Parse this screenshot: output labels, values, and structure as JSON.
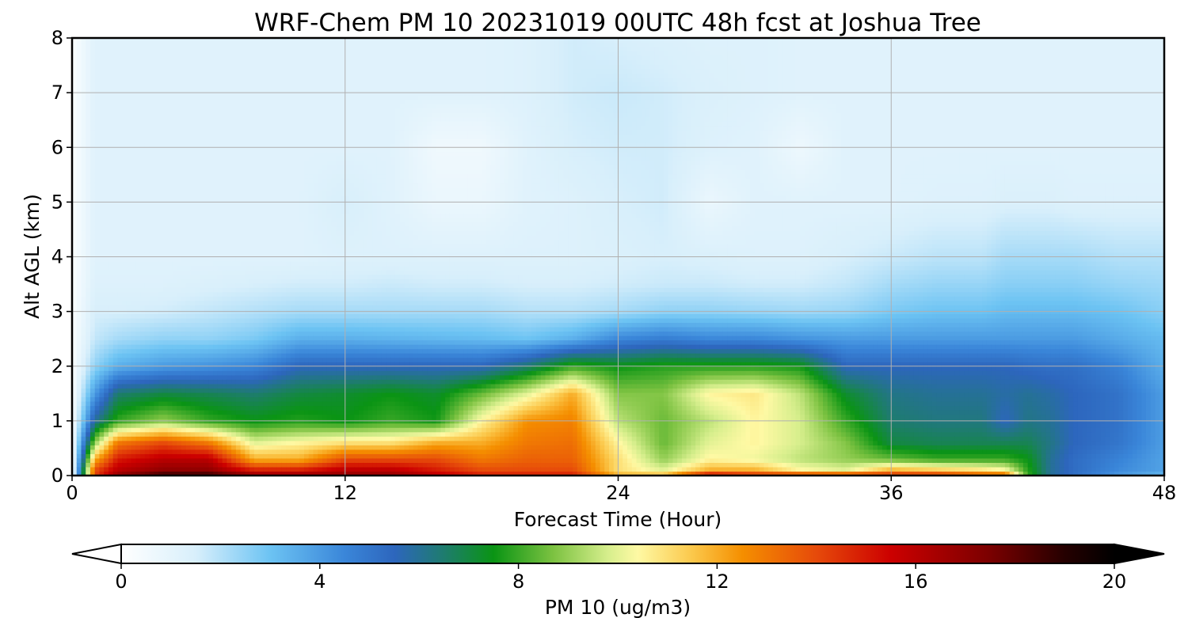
{
  "chart_data": {
    "type": "heatmap",
    "title": "WRF-Chem PM 10  20231019 00UTC 48h fcst at Joshua Tree",
    "xlabel": "Forecast Time (Hour)",
    "ylabel": "Alt AGL (km)",
    "xlim": [
      0,
      48
    ],
    "ylim": [
      0,
      8
    ],
    "x_ticks": [
      "0",
      "12",
      "24",
      "36",
      "48"
    ],
    "y_ticks": [
      "0",
      "1",
      "2",
      "3",
      "4",
      "5",
      "6",
      "7",
      "8"
    ],
    "grid": true,
    "colorbar": {
      "label": "PM 10  (ug/m3)",
      "orientation": "horizontal",
      "placement": "bottom",
      "range": [
        0,
        20
      ],
      "ticks": [
        "0",
        "4",
        "8",
        "12",
        "16",
        "20"
      ],
      "extend": "both",
      "colormap_stops": [
        {
          "value": 0,
          "color": "#ffffff"
        },
        {
          "value": 1.5,
          "color": "#d8effb"
        },
        {
          "value": 3,
          "color": "#6cc3f3"
        },
        {
          "value": 4.5,
          "color": "#3a86d9"
        },
        {
          "value": 5.5,
          "color": "#2d66bd"
        },
        {
          "value": 6.5,
          "color": "#1e7c6e"
        },
        {
          "value": 7.5,
          "color": "#0a9414"
        },
        {
          "value": 8.7,
          "color": "#7cc241"
        },
        {
          "value": 9.8,
          "color": "#d6ee8c"
        },
        {
          "value": 10.4,
          "color": "#fef9a4"
        },
        {
          "value": 11.5,
          "color": "#fbc84b"
        },
        {
          "value": 12.5,
          "color": "#f58f00"
        },
        {
          "value": 14,
          "color": "#e64a0a"
        },
        {
          "value": 15.5,
          "color": "#cc0000"
        },
        {
          "value": 17.5,
          "color": "#7a0000"
        },
        {
          "value": 19,
          "color": "#250000"
        },
        {
          "value": 20,
          "color": "#000000"
        }
      ]
    },
    "time_hours": [
      0,
      1,
      2,
      4,
      6,
      8,
      10,
      12,
      14,
      16,
      18,
      20,
      22,
      24,
      26,
      28,
      30,
      32,
      34,
      36,
      38,
      40,
      41,
      42,
      43,
      44,
      46,
      48
    ],
    "altitudes_km": [
      0,
      0.1,
      0.3,
      0.6,
      1.0,
      1.5,
      2.0,
      2.5,
      3.0,
      3.5,
      4.0,
      5.0,
      6.0,
      7.0,
      8.0
    ],
    "pm10": [
      [
        0.2,
        0.2,
        0.2,
        0.2,
        0.2,
        0.2,
        0.2,
        0.2,
        0.2,
        0.2,
        0.2,
        0.2,
        0.2,
        0.2,
        0.2
      ],
      [
        14,
        14,
        12,
        9,
        6,
        4,
        2.5,
        1.8,
        1.5,
        1.3,
        1.2,
        1.2,
        1.2,
        1.2,
        1.2
      ],
      [
        17,
        16,
        15,
        13,
        8,
        6.5,
        3.5,
        2.2,
        1.5,
        1.3,
        1.2,
        1.2,
        1.2,
        1.2,
        1.2
      ],
      [
        19,
        17,
        16,
        14,
        9,
        7,
        4,
        2.5,
        1.6,
        1.3,
        1.2,
        1.2,
        1.2,
        1.2,
        1.2
      ],
      [
        19,
        17,
        16,
        13,
        8,
        6.8,
        4.2,
        2.5,
        1.8,
        1.4,
        1.2,
        1.2,
        1.2,
        1.2,
        1.2
      ],
      [
        17,
        15,
        12,
        10,
        7.5,
        6.5,
        4.5,
        2.8,
        2.0,
        1.5,
        1.2,
        1.2,
        1.2,
        1.2,
        1.2
      ],
      [
        17,
        15,
        12,
        10.5,
        7.8,
        7,
        5.5,
        3.5,
        2.2,
        1.6,
        1.2,
        1.2,
        1.2,
        1.2,
        1.2
      ],
      [
        17,
        16,
        14,
        11,
        7.5,
        7.2,
        5.5,
        3.5,
        2.2,
        1.6,
        1.3,
        1.5,
        1.2,
        1.2,
        1.2
      ],
      [
        17,
        16,
        14,
        11,
        8,
        7.5,
        5.5,
        3.4,
        2.2,
        1.7,
        1.3,
        1.2,
        1.2,
        1.2,
        1.2
      ],
      [
        16,
        15,
        14,
        12,
        7.6,
        7.2,
        5.5,
        3.3,
        2.2,
        1.6,
        1.3,
        0.8,
        0.6,
        1.2,
        1.2
      ],
      [
        15,
        14,
        13,
        12,
        10.5,
        8.5,
        5.5,
        3.2,
        2.2,
        1.6,
        1.3,
        0.8,
        0.6,
        1.2,
        1.2
      ],
      [
        15,
        14,
        13.5,
        13,
        12.5,
        10,
        6.5,
        3,
        2.0,
        1.5,
        1.3,
        1.2,
        1.2,
        1.3,
        1.3
      ],
      [
        15,
        14,
        13.5,
        13.2,
        12.8,
        12,
        8,
        3.5,
        2.0,
        1.5,
        1.3,
        1.3,
        1.5,
        1.6,
        1.6
      ],
      [
        12,
        11,
        11,
        10.5,
        9.5,
        8.8,
        7.5,
        4.5,
        2.2,
        1.6,
        1.4,
        1.5,
        1.6,
        1.7,
        1.5
      ],
      [
        12,
        10,
        9,
        8.5,
        8.5,
        8.8,
        7.8,
        4.8,
        2.5,
        1.7,
        1.5,
        1.6,
        1.6,
        1.6,
        1.4
      ],
      [
        16,
        12,
        10.5,
        10,
        9.5,
        10.5,
        7.8,
        4.5,
        2.5,
        1.7,
        1.4,
        0.8,
        1.3,
        1.4,
        1.3
      ],
      [
        15,
        12,
        10.2,
        10.5,
        10.5,
        10.8,
        7.8,
        4.5,
        2.4,
        1.6,
        1.3,
        1.2,
        1.2,
        1.3,
        1.3
      ],
      [
        15,
        10.5,
        9.5,
        9.8,
        9.8,
        9.5,
        7.6,
        4.2,
        2.3,
        1.6,
        1.3,
        1.2,
        0.7,
        1.2,
        1.2
      ],
      [
        15,
        10,
        9,
        8.8,
        8,
        7.2,
        5.5,
        4,
        2.4,
        1.8,
        1.5,
        1.2,
        1.2,
        1.2,
        1.2
      ],
      [
        15,
        12,
        8.5,
        7,
        6.5,
        6.2,
        5.5,
        4,
        2.8,
        2.2,
        1.7,
        1.2,
        1.2,
        1.2,
        1.2
      ],
      [
        15,
        11.5,
        8,
        6.8,
        6.3,
        6,
        5.5,
        4,
        3,
        2.4,
        1.9,
        1.3,
        1.2,
        1.2,
        1.2
      ],
      [
        14,
        11,
        8,
        6.8,
        6.3,
        6,
        5.5,
        4,
        3,
        2.4,
        1.9,
        1.3,
        1.2,
        1.2,
        1.2
      ],
      [
        14,
        10.5,
        8,
        6.8,
        5.5,
        5.8,
        5.5,
        4,
        3.2,
        2.6,
        2.2,
        1.4,
        1.2,
        1.2,
        1.2
      ],
      [
        8,
        7.8,
        7.5,
        6.8,
        6.2,
        6,
        5.3,
        4,
        3.2,
        2.6,
        2.2,
        1.4,
        1.2,
        1.2,
        1.2
      ],
      [
        6,
        6,
        6,
        6.2,
        6,
        5.8,
        5.2,
        4,
        3.2,
        2.6,
        2.2,
        1.4,
        1.2,
        1.2,
        1.2
      ],
      [
        5.2,
        5.3,
        5.3,
        5.5,
        5.5,
        5.5,
        5.2,
        4,
        3.2,
        2.6,
        2.2,
        1.3,
        1.2,
        1.2,
        1.2
      ],
      [
        4,
        4.4,
        4.6,
        5,
        5.1,
        5.1,
        4.6,
        3.6,
        3.0,
        2.4,
        2.0,
        1.3,
        1.2,
        1.2,
        1.2
      ],
      [
        3.2,
        3.8,
        3.8,
        3.9,
        3.9,
        3.9,
        3.5,
        3.2,
        2.6,
        2.3,
        2.0,
        1.3,
        1.2,
        1.2,
        1.2
      ]
    ]
  }
}
